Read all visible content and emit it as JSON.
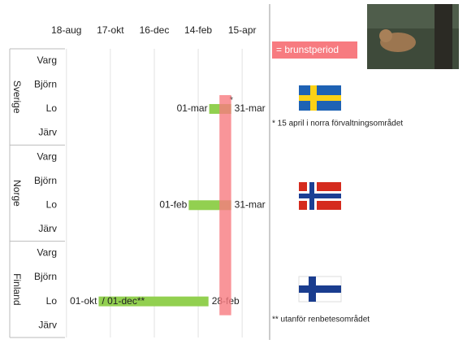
{
  "chart_data": {
    "type": "gantt",
    "xlim": [
      "08-16",
      "05-07"
    ],
    "xticks": [
      {
        "value": "08-18",
        "label": "18-aug"
      },
      {
        "value": "10-17",
        "label": "17-okt"
      },
      {
        "value": "12-16",
        "label": "16-dec"
      },
      {
        "value": "02-14",
        "label": "14-feb"
      },
      {
        "value": "04-15",
        "label": "15-apr"
      }
    ],
    "groups": [
      {
        "name": "Sverige",
        "rows": [
          "Varg",
          "Björn",
          "Lo",
          "Järv"
        ]
      },
      {
        "name": "Norge",
        "rows": [
          "Varg",
          "Björn",
          "Lo",
          "Järv"
        ]
      },
      {
        "name": "Finland",
        "rows": [
          "Varg",
          "Björn",
          "Lo",
          "Järv"
        ]
      }
    ],
    "bars": [
      {
        "group": 0,
        "row": 2,
        "start": "03-01",
        "end": "03-31",
        "start_label": "01-mar",
        "end_label": "31-mar",
        "end_note": "*"
      },
      {
        "group": 1,
        "row": 2,
        "start": "02-01",
        "end": "03-31",
        "start_label": "01-feb",
        "end_label": "31-mar"
      },
      {
        "group": 2,
        "row": 2,
        "start": "10-01",
        "end": "02-28",
        "start_label": "01-okt",
        "alt_label": "/ 01-dec**",
        "end_label": "28-feb"
      }
    ],
    "bar_color": "#92d050",
    "highlight": {
      "start": "03-15",
      "end": "03-31",
      "color": "#f77b80",
      "label": "= brunstperiod"
    },
    "notes": [
      "* 15 april i norra förvaltningsområdet",
      "** utanför renbetesområdet"
    ]
  }
}
